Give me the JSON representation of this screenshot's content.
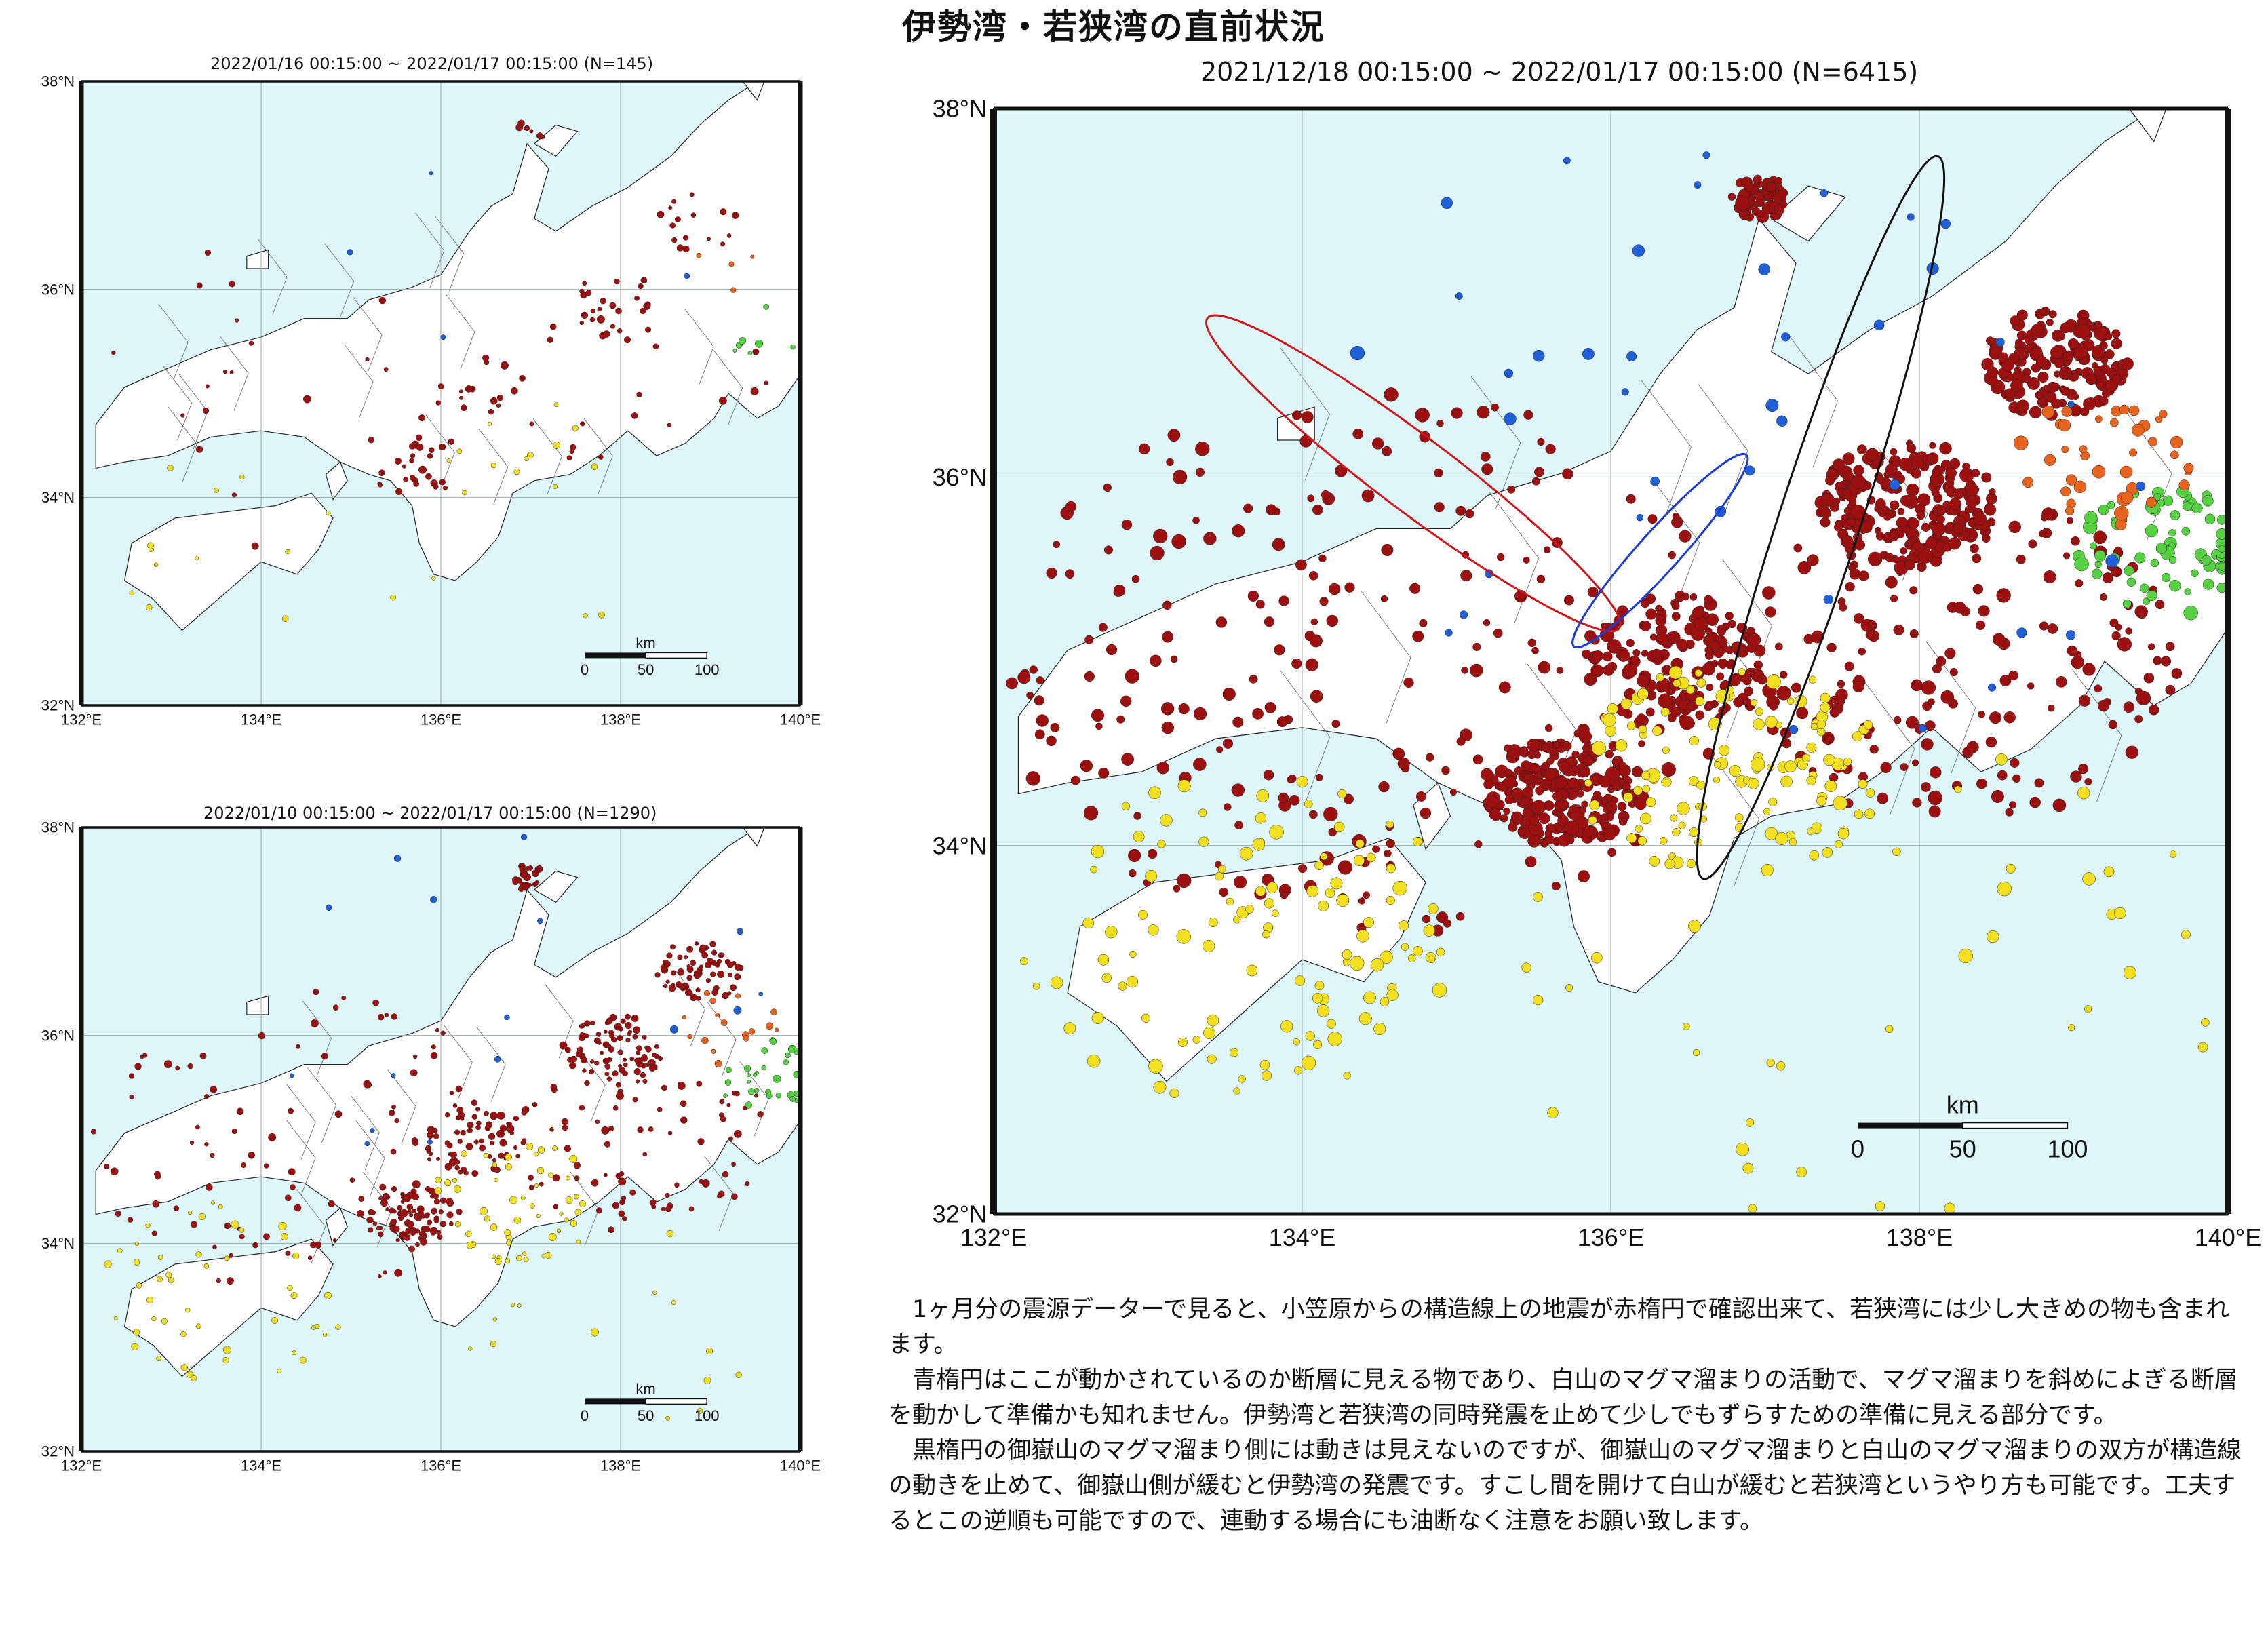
{
  "page_title": "伊勢湾・若狭湾の直前状況",
  "maps": [
    {
      "id": "small-top",
      "header": "2022/01/16 00:15:00 ~ 2022/01/17 00:15:00 (N=145)",
      "lat_labels": [
        "38°N",
        "36°N",
        "34°N",
        "32°N"
      ],
      "lon_labels": [
        "132°E",
        "134°E",
        "136°E",
        "138°E",
        "140°E"
      ],
      "scale_unit": "km",
      "scale_ticks": [
        "0",
        "50",
        "100"
      ]
    },
    {
      "id": "small-bottom",
      "header": "2022/01/10 00:15:00 ~ 2022/01/17 00:15:00 (N=1290)",
      "lat_labels": [
        "38°N",
        "36°N",
        "34°N",
        "32°N"
      ],
      "lon_labels": [
        "132°E",
        "134°E",
        "136°E",
        "138°E",
        "140°E"
      ],
      "scale_unit": "km",
      "scale_ticks": [
        "0",
        "50",
        "100"
      ]
    },
    {
      "id": "main",
      "header": "2021/12/18 00:15:00 ~ 2022/01/17 00:15:00 (N=6415)",
      "lat_labels": [
        "38°N",
        "36°N",
        "34°N",
        "32°N"
      ],
      "lon_labels": [
        "132°E",
        "134°E",
        "136°E",
        "138°E",
        "140°E"
      ],
      "scale_unit": "km",
      "scale_ticks": [
        "0",
        "50",
        "100"
      ],
      "annotations": [
        {
          "name": "red-ellipse",
          "color": "#d0141c"
        },
        {
          "name": "blue-ellipse",
          "color": "#1a3ad8"
        },
        {
          "name": "black-ellipse",
          "color": "#111111"
        }
      ]
    }
  ],
  "colors": {
    "sea": "#def6fa",
    "land": "#ffffff",
    "deep_red": "#9c1010",
    "orange": "#e8641e",
    "yellow": "#f2e020",
    "green": "#55d040",
    "blue": "#1f5fd8"
  },
  "paragraphs": [
    "1ヶ月分の震源データーで見ると、小笠原からの構造線上の地震が赤楕円で確認出来て、若狭湾には少し大きめの物も含まれます。",
    "青楕円はここが動かされているのか断層に見える物であり、白山のマグマ溜まりの活動で、マグマ溜まりを斜めによぎる断層を動かして準備かも知れません。伊勢湾と若狭湾の同時発震を止めて少しでもずらすための準備に見える部分です。",
    "黒楕円の御嶽山のマグマ溜まり側には動きは見えないのですが、御嶽山のマグマ溜まりと白山のマグマ溜まりの双方が構造線の動きを止めて、御嶽山側が緩むと伊勢湾の発震です。すこし間を開けて白山が緩むと若狭湾というやり方も可能です。工夫するとこの逆順も可能ですので、連動する場合にも油断なく注意をお願い致します。"
  ]
}
